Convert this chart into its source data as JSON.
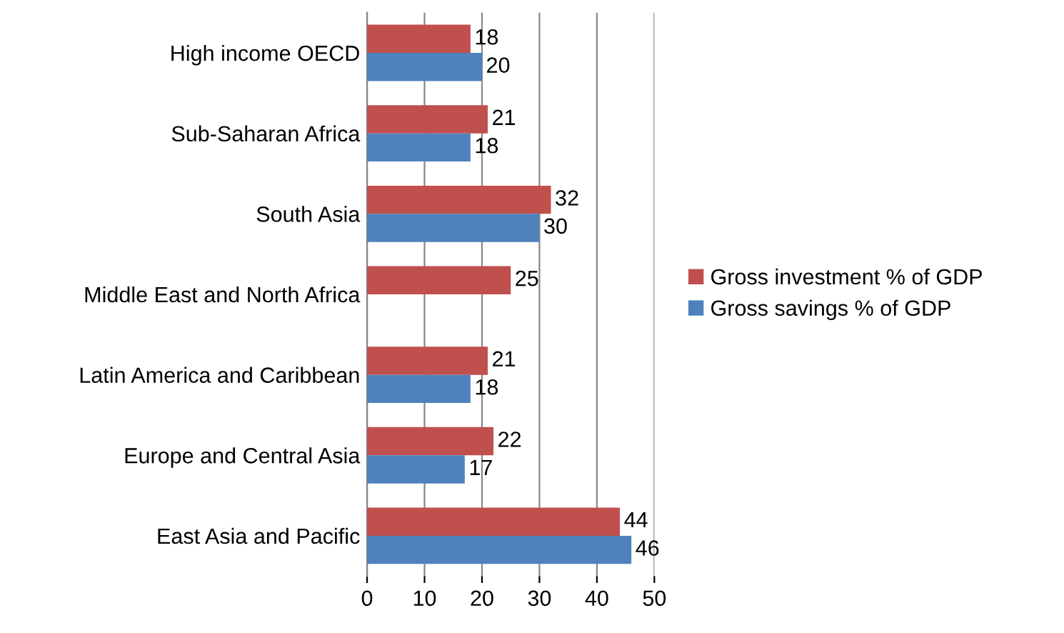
{
  "chart_data": {
    "type": "bar",
    "orientation": "horizontal",
    "categories": [
      "High income OECD",
      "Sub-Saharan Africa",
      "South Asia",
      "Middle East and North Africa",
      "Latin America and Caribbean",
      "Europe and Central Asia",
      "East Asia and Pacific"
    ],
    "series": [
      {
        "name": "Gross investment % of GDP",
        "color": "#c0504d",
        "values": [
          18,
          21,
          32,
          25,
          21,
          22,
          44
        ]
      },
      {
        "name": "Gross savings % of GDP",
        "color": "#4f81bd",
        "values": [
          20,
          18,
          30,
          null,
          18,
          17,
          46
        ]
      }
    ],
    "xlim": [
      0,
      50
    ],
    "xticks": [
      0,
      10,
      20,
      30,
      40,
      50
    ],
    "grid": "x",
    "legend": "right",
    "data_labels": true
  }
}
